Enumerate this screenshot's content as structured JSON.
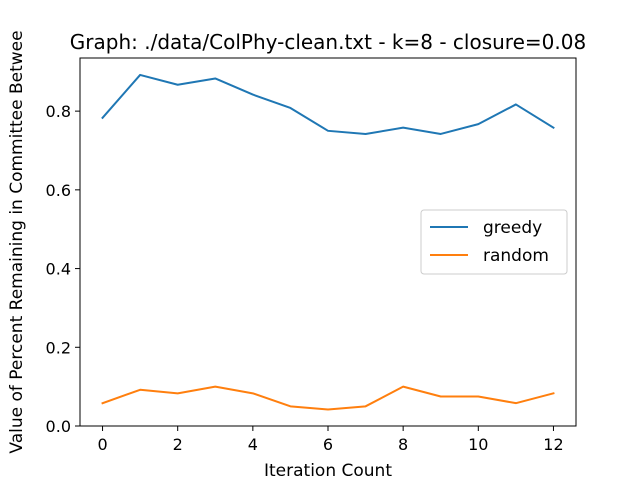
{
  "chart_data": {
    "type": "line",
    "title": "Graph: ./data/ColPhy-clean.txt - k=8 - closure=0.08",
    "xlabel": "Iteration Count",
    "ylabel": "Value of Percent Remaining in Committee Betwee",
    "x": [
      0,
      1,
      2,
      3,
      4,
      5,
      6,
      7,
      8,
      9,
      10,
      11,
      12
    ],
    "xlim": [
      -0.6,
      12.6
    ],
    "ylim": [
      0,
      0.935
    ],
    "xticks": [
      0,
      2,
      4,
      6,
      8,
      10,
      12
    ],
    "yticks": [
      0.0,
      0.2,
      0.4,
      0.6,
      0.8
    ],
    "xtick_labels": [
      "0",
      "2",
      "4",
      "6",
      "8",
      "10",
      "12"
    ],
    "ytick_labels": [
      "0.0",
      "0.2",
      "0.4",
      "0.6",
      "0.8"
    ],
    "grid": false,
    "legend_position": "center-right",
    "series": [
      {
        "name": "greedy",
        "color": "#1f77b4",
        "values": [
          0.783,
          0.892,
          0.867,
          0.883,
          0.842,
          0.808,
          0.75,
          0.742,
          0.758,
          0.742,
          0.767,
          0.817,
          0.758
        ]
      },
      {
        "name": "random",
        "color": "#ff7f0e",
        "values": [
          0.058,
          0.092,
          0.083,
          0.1,
          0.083,
          0.05,
          0.042,
          0.05,
          0.1,
          0.075,
          0.075,
          0.058,
          0.083
        ]
      }
    ]
  }
}
